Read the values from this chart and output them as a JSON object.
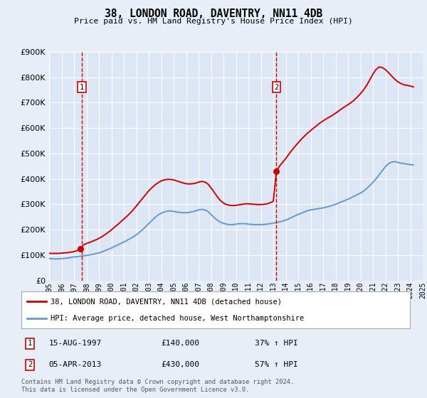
{
  "title": "38, LONDON ROAD, DAVENTRY, NN11 4DB",
  "subtitle": "Price paid vs. HM Land Registry's House Price Index (HPI)",
  "ylim": [
    0,
    900000
  ],
  "yticks": [
    0,
    100000,
    200000,
    300000,
    400000,
    500000,
    600000,
    700000,
    800000,
    900000
  ],
  "ytick_labels": [
    "£0",
    "£100K",
    "£200K",
    "£300K",
    "£400K",
    "£500K",
    "£600K",
    "£700K",
    "£800K",
    "£900K"
  ],
  "background_color": "#e8eef8",
  "plot_bg_color": "#dce6f5",
  "grid_color": "#ffffff",
  "legend_entries": [
    "38, LONDON ROAD, DAVENTRY, NN11 4DB (detached house)",
    "HPI: Average price, detached house, West Northamptonshire"
  ],
  "legend_colors": [
    "#cc0000",
    "#6699cc"
  ],
  "purchase_markers": [
    {
      "label": "1",
      "date": "15-AUG-1997",
      "price": 140000,
      "pct": "37% ↑ HPI",
      "x_year": 1997.62
    },
    {
      "label": "2",
      "date": "05-APR-2013",
      "price": 430000,
      "pct": "57% ↑ HPI",
      "x_year": 2013.25
    }
  ],
  "footer": "Contains HM Land Registry data © Crown copyright and database right 2024.\nThis data is licensed under the Open Government Licence v3.0.",
  "hpi_line": {
    "color": "#6699cc",
    "years": [
      1995.0,
      1995.25,
      1995.5,
      1995.75,
      1996.0,
      1996.25,
      1996.5,
      1996.75,
      1997.0,
      1997.25,
      1997.5,
      1997.75,
      1998.0,
      1998.25,
      1998.5,
      1998.75,
      1999.0,
      1999.25,
      1999.5,
      1999.75,
      2000.0,
      2000.25,
      2000.5,
      2000.75,
      2001.0,
      2001.25,
      2001.5,
      2001.75,
      2002.0,
      2002.25,
      2002.5,
      2002.75,
      2003.0,
      2003.25,
      2003.5,
      2003.75,
      2004.0,
      2004.25,
      2004.5,
      2004.75,
      2005.0,
      2005.25,
      2005.5,
      2005.75,
      2006.0,
      2006.25,
      2006.5,
      2006.75,
      2007.0,
      2007.25,
      2007.5,
      2007.75,
      2008.0,
      2008.25,
      2008.5,
      2008.75,
      2009.0,
      2009.25,
      2009.5,
      2009.75,
      2010.0,
      2010.25,
      2010.5,
      2010.75,
      2011.0,
      2011.25,
      2011.5,
      2011.75,
      2012.0,
      2012.25,
      2012.5,
      2012.75,
      2013.0,
      2013.25,
      2013.5,
      2013.75,
      2014.0,
      2014.25,
      2014.5,
      2014.75,
      2015.0,
      2015.25,
      2015.5,
      2015.75,
      2016.0,
      2016.25,
      2016.5,
      2016.75,
      2017.0,
      2017.25,
      2017.5,
      2017.75,
      2018.0,
      2018.25,
      2018.5,
      2018.75,
      2019.0,
      2019.25,
      2019.5,
      2019.75,
      2020.0,
      2020.25,
      2020.5,
      2020.75,
      2021.0,
      2021.25,
      2021.5,
      2021.75,
      2022.0,
      2022.25,
      2022.5,
      2022.75,
      2023.0,
      2023.25,
      2023.5,
      2023.75,
      2024.0,
      2024.25
    ],
    "values": [
      87000,
      86000,
      85000,
      85500,
      86500,
      87500,
      89000,
      91000,
      93000,
      94000,
      96000,
      97000,
      99000,
      101000,
      103000,
      106000,
      109000,
      113000,
      118000,
      123000,
      128000,
      134000,
      140000,
      146000,
      152000,
      158000,
      165000,
      172000,
      180000,
      190000,
      200000,
      212000,
      224000,
      236000,
      248000,
      258000,
      265000,
      270000,
      273000,
      274000,
      272000,
      270000,
      268000,
      267000,
      267000,
      268000,
      271000,
      274000,
      278000,
      280000,
      278000,
      272000,
      260000,
      248000,
      238000,
      230000,
      225000,
      222000,
      220000,
      220000,
      222000,
      224000,
      224000,
      224000,
      222000,
      221000,
      220000,
      220000,
      220000,
      221000,
      222000,
      224000,
      226000,
      228000,
      231000,
      234000,
      238000,
      243000,
      249000,
      255000,
      260000,
      265000,
      270000,
      275000,
      278000,
      280000,
      282000,
      284000,
      286000,
      289000,
      292000,
      296000,
      300000,
      305000,
      310000,
      315000,
      320000,
      326000,
      332000,
      338000,
      344000,
      352000,
      362000,
      374000,
      386000,
      400000,
      416000,
      432000,
      448000,
      460000,
      466000,
      468000,
      465000,
      462000,
      460000,
      458000,
      456000,
      455000
    ]
  },
  "property_line": {
    "color": "#cc0000",
    "years": [
      1995.0,
      1995.25,
      1995.5,
      1995.75,
      1996.0,
      1996.25,
      1996.5,
      1996.75,
      1997.0,
      1997.25,
      1997.5,
      1997.75,
      1998.0,
      1998.25,
      1998.5,
      1998.75,
      1999.0,
      1999.25,
      1999.5,
      1999.75,
      2000.0,
      2000.25,
      2000.5,
      2000.75,
      2001.0,
      2001.25,
      2001.5,
      2001.75,
      2002.0,
      2002.25,
      2002.5,
      2002.75,
      2003.0,
      2003.25,
      2003.5,
      2003.75,
      2004.0,
      2004.25,
      2004.5,
      2004.75,
      2005.0,
      2005.25,
      2005.5,
      2005.75,
      2006.0,
      2006.25,
      2006.5,
      2006.75,
      2007.0,
      2007.25,
      2007.5,
      2007.75,
      2008.0,
      2008.25,
      2008.5,
      2008.75,
      2009.0,
      2009.25,
      2009.5,
      2009.75,
      2010.0,
      2010.25,
      2010.5,
      2010.75,
      2011.0,
      2011.25,
      2011.5,
      2011.75,
      2012.0,
      2012.25,
      2012.5,
      2012.75,
      2013.0,
      2013.25,
      2013.5,
      2013.75,
      2014.0,
      2014.25,
      2014.5,
      2014.75,
      2015.0,
      2015.25,
      2015.5,
      2015.75,
      2016.0,
      2016.25,
      2016.5,
      2016.75,
      2017.0,
      2017.25,
      2017.5,
      2017.75,
      2018.0,
      2018.25,
      2018.5,
      2018.75,
      2019.0,
      2019.25,
      2019.5,
      2019.75,
      2020.0,
      2020.25,
      2020.5,
      2020.75,
      2021.0,
      2021.25,
      2021.5,
      2021.75,
      2022.0,
      2022.25,
      2022.5,
      2022.75,
      2023.0,
      2023.25,
      2023.5,
      2023.75,
      2024.0,
      2024.25
    ],
    "values": [
      107000,
      107000,
      107000,
      107000,
      108000,
      109000,
      110000,
      112000,
      114000,
      118000,
      125000,
      140000,
      146000,
      150000,
      155000,
      160000,
      166000,
      173000,
      181000,
      190000,
      199000,
      210000,
      220000,
      231000,
      242000,
      253000,
      265000,
      278000,
      293000,
      308000,
      323000,
      338000,
      353000,
      365000,
      376000,
      385000,
      392000,
      396000,
      398000,
      398000,
      396000,
      392000,
      388000,
      384000,
      381000,
      380000,
      381000,
      383000,
      387000,
      390000,
      388000,
      380000,
      365000,
      348000,
      330000,
      315000,
      305000,
      299000,
      296000,
      295000,
      296000,
      298000,
      300000,
      302000,
      302000,
      301000,
      300000,
      299000,
      299000,
      300000,
      302000,
      306000,
      312000,
      430000,
      450000,
      465000,
      480000,
      497000,
      513000,
      528000,
      542000,
      556000,
      568000,
      580000,
      590000,
      600000,
      610000,
      620000,
      628000,
      636000,
      643000,
      650000,
      658000,
      667000,
      676000,
      684000,
      692000,
      700000,
      710000,
      722000,
      735000,
      750000,
      768000,
      790000,
      812000,
      830000,
      840000,
      838000,
      830000,
      818000,
      805000,
      792000,
      782000,
      775000,
      770000,
      768000,
      765000,
      762000
    ]
  },
  "xmin": 1995.0,
  "xmax": 2025.0
}
